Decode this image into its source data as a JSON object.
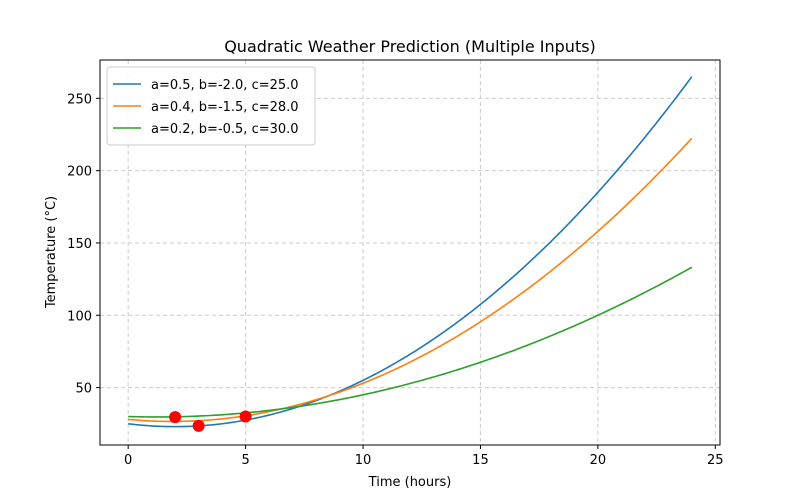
{
  "chart_data": {
    "type": "line",
    "title": "Quadratic Weather Prediction (Multiple Inputs)",
    "xlabel": "Time (hours)",
    "ylabel": "Temperature (°C)",
    "xlim": [
      -1.2,
      25.2
    ],
    "ylim": [
      10.3,
      276.5
    ],
    "xticks": [
      0,
      5,
      10,
      15,
      20,
      25
    ],
    "yticks": [
      50,
      100,
      150,
      200,
      250
    ],
    "grid": true,
    "grid_style": "dashed",
    "legend_position": "top-left",
    "x_range": [
      0,
      24
    ],
    "series": [
      {
        "name": "a=0.5, b=-2.0, c=25.0",
        "a": 0.5,
        "b": -2.0,
        "c": 25.0,
        "color": "#1f77b4"
      },
      {
        "name": "a=0.4, b=-1.5, c=28.0",
        "a": 0.4,
        "b": -1.5,
        "c": 28.0,
        "color": "#ff7f0e"
      },
      {
        "name": "a=0.2, b=-0.5, c=30.0",
        "a": 0.2,
        "b": -0.5,
        "c": 30.0,
        "color": "#2ca02c"
      }
    ],
    "highlight_points": [
      {
        "x": 2,
        "y": 29.6
      },
      {
        "x": 3,
        "y": 23.5
      },
      {
        "x": 5,
        "y": 30.0
      }
    ],
    "highlight_color": "#ff0000"
  }
}
